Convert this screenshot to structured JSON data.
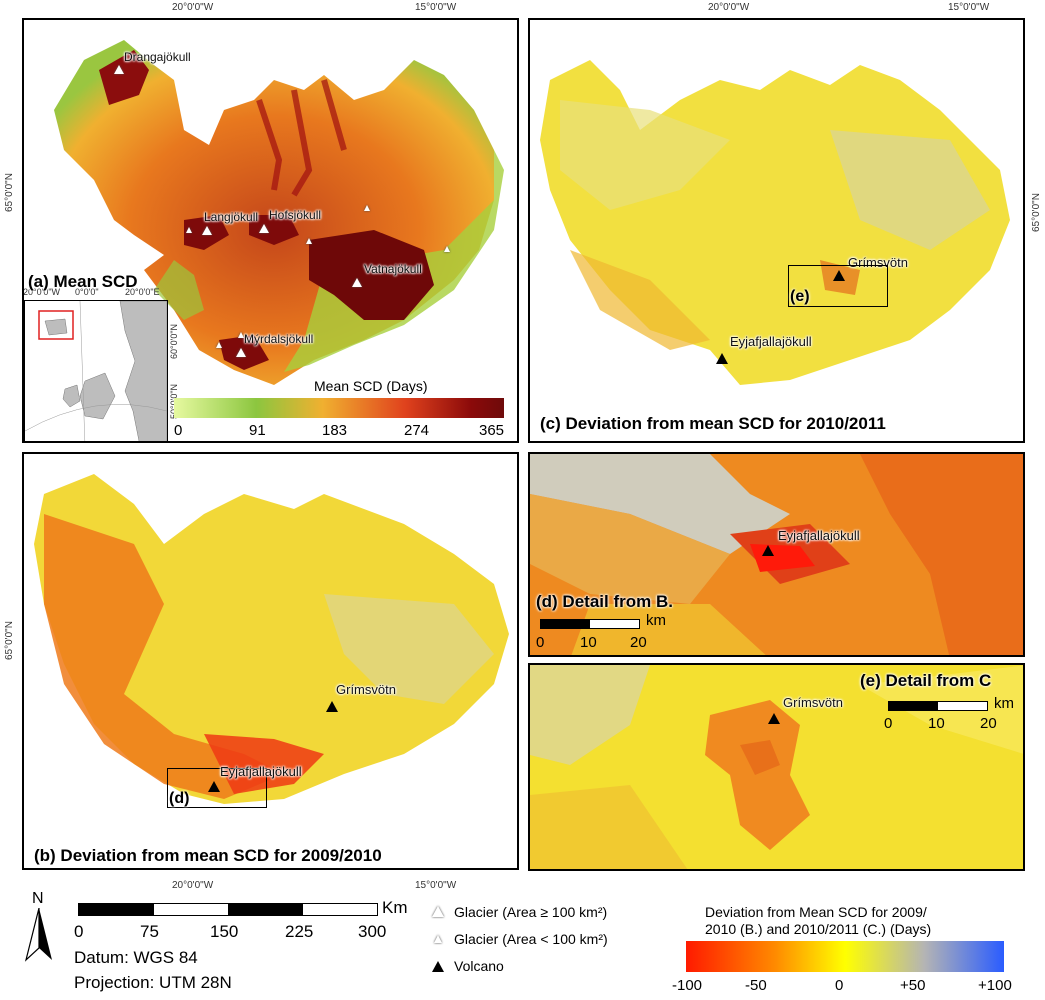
{
  "graticule": {
    "top_lon_left": "20°0'0\"W",
    "top_lon_right": "15°0'0\"W",
    "lat_left": "65°0'0\"N",
    "lat_right": "65°0'0\"N",
    "bottom_lon_left": "20°0'0\"W",
    "bottom_lon_right": "15°0'0\"W"
  },
  "panel_a": {
    "title": "(a) Mean SCD",
    "glaciers": [
      "Drangajökull",
      "Langjökull",
      "Hofsjökull",
      "Vatnajökull",
      "Mýrdalsjökull"
    ],
    "inset": {
      "lon_labels": [
        "20°0'0\"W",
        "0°0'0\"",
        "20°0'0\"E"
      ],
      "lat_label": "50°0'0\"N",
      "lat_label_2": "60°0'0\"N"
    },
    "legend": {
      "title": "Mean SCD (Days)",
      "ticks": [
        "0",
        "91",
        "183",
        "274",
        "365"
      ],
      "colors": [
        "#d3f57a",
        "#8cc63f",
        "#f0a82a",
        "#e0421d",
        "#8b0a0a",
        "#6e0a0a"
      ]
    }
  },
  "panel_b": {
    "title": "(b) Deviation from mean SCD for 2009/2010",
    "volcanoes": [
      "Grímsvötn",
      "Eyjafjallajökull"
    ],
    "box_label": "(d)"
  },
  "panel_c": {
    "title": "(c) Deviation from mean SCD for 2010/2011",
    "volcanoes": [
      "Grímsvötn",
      "Eyjafjallajökull"
    ],
    "box_label": "(e)"
  },
  "panel_d": {
    "title": "(d) Detail from B.",
    "volcano": "Eyjafjallajökull",
    "scale_unit": "km",
    "scale_ticks": [
      "0",
      "10",
      "20"
    ]
  },
  "panel_e": {
    "title": "(e) Detail from C",
    "volcano": "Grímsvötn",
    "scale_unit": "km",
    "scale_ticks": [
      "0",
      "10",
      "20"
    ]
  },
  "footer": {
    "north": "N",
    "scale_unit": "Km",
    "scale_ticks": [
      "0",
      "75",
      "150",
      "225",
      "300"
    ],
    "datum": "Datum: WGS 84",
    "projection": "Projection: UTM 28N",
    "legend_items": [
      {
        "icon": "glacier-large-icon",
        "label": "Glacier (Area ≥ 100 km²)"
      },
      {
        "icon": "glacier-small-icon",
        "label": "Glacier (Area < 100 km²)"
      },
      {
        "icon": "volcano-icon",
        "label": "Volcano"
      }
    ],
    "deviation_legend": {
      "title_line1": "Deviation from Mean SCD for 2009/",
      "title_line2": "2010 (B.) and 2010/2011 (C.) (Days)",
      "ticks": [
        "-100",
        "-50",
        "0",
        "+50",
        "+100"
      ],
      "colors": [
        "#ff1a00",
        "#ff8a00",
        "#ffff00",
        "#b0b0b0",
        "#2a5cff"
      ]
    }
  }
}
